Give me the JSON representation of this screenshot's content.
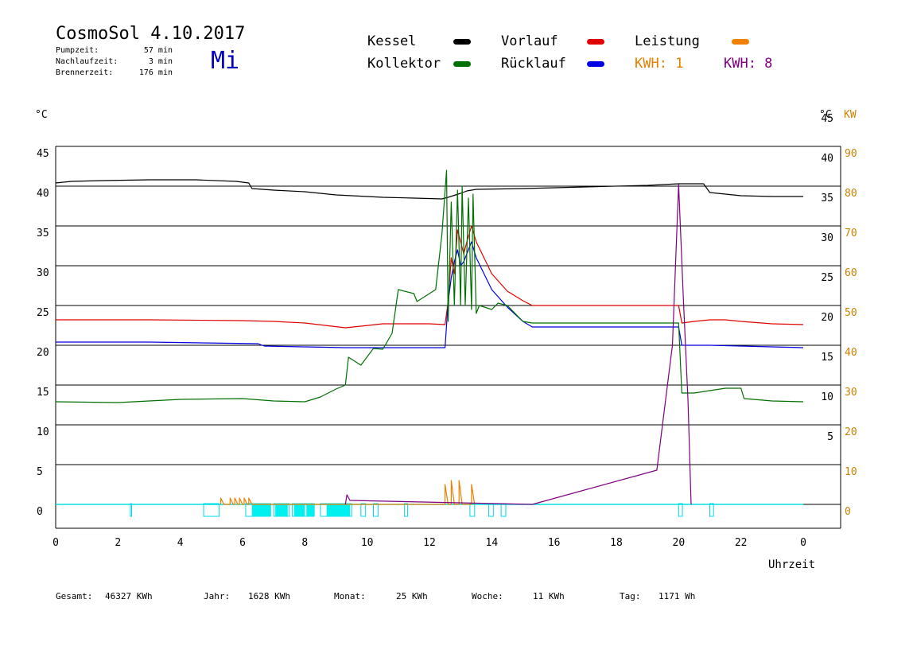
{
  "header": {
    "title": "CosmoSol 4.10.2017",
    "weekday": "Mi",
    "stats": [
      {
        "label": "Pumpzeit:",
        "value": "57 min"
      },
      {
        "label": "Nachlaufzeit:",
        "value": "3 min"
      },
      {
        "label": "Brennerzeit:",
        "value": "176 min"
      }
    ]
  },
  "legend": [
    {
      "name": "Kessel",
      "color": "#000000"
    },
    {
      "name": "Vorlauf",
      "color": "#e00000"
    },
    {
      "name": "Leistung",
      "color": "#f08000"
    },
    {
      "name": "Kollektor",
      "color": "#007000"
    },
    {
      "name": "Rücklauf",
      "color": "#0000e0"
    }
  ],
  "kwh_labels": [
    {
      "text": "KWH: 1",
      "color": "#e08000"
    },
    {
      "text": "KWH: 8",
      "color": "#800080"
    }
  ],
  "footer": [
    {
      "label": "Gesamt:",
      "value": "46327 KWh"
    },
    {
      "label": "Jahr:",
      "value": "1628 KWh"
    },
    {
      "label": "Monat:",
      "value": "25 KWh"
    },
    {
      "label": "Woche:",
      "value": "11 KWh"
    },
    {
      "label": "Tag:",
      "value": "1171 Wh"
    }
  ],
  "chart_data": {
    "type": "line",
    "xlabel": "Uhrzeit",
    "ylabel_left": "°C",
    "ylabel_right_c": "°C",
    "ylabel_right_kw": "KW",
    "xlim": [
      0,
      24
    ],
    "ylim": [
      -3,
      45
    ],
    "x_ticks": [
      "0",
      "2",
      "4",
      "6",
      "8",
      "10",
      "12",
      "14",
      "16",
      "18",
      "20",
      "22",
      "0"
    ],
    "y_ticks_left": [
      "0",
      "5",
      "10",
      "15",
      "20",
      "25",
      "30",
      "35",
      "40",
      "45"
    ],
    "y_ticks_right_c": [
      "5",
      "10",
      "15",
      "20",
      "25",
      "30",
      "35",
      "40",
      "45"
    ],
    "y_ticks_right_kw": [
      "0",
      "10",
      "20",
      "30",
      "40",
      "50",
      "60",
      "70",
      "80",
      "90"
    ],
    "grid": true,
    "series": [
      {
        "name": "Kessel",
        "color": "#000000",
        "points": [
          [
            0,
            40.4
          ],
          [
            0.5,
            40.6
          ],
          [
            1.5,
            40.7
          ],
          [
            3,
            40.8
          ],
          [
            4.5,
            40.8
          ],
          [
            5.8,
            40.6
          ],
          [
            6.2,
            40.4
          ],
          [
            6.3,
            39.7
          ],
          [
            7,
            39.5
          ],
          [
            8,
            39.3
          ],
          [
            9,
            38.9
          ],
          [
            9.5,
            38.8
          ],
          [
            10.5,
            38.6
          ],
          [
            11.5,
            38.5
          ],
          [
            12.4,
            38.4
          ],
          [
            12.6,
            38.6
          ],
          [
            13,
            39.1
          ],
          [
            13.2,
            39.4
          ],
          [
            13.5,
            39.6
          ],
          [
            15,
            39.7
          ],
          [
            17,
            39.9
          ],
          [
            19,
            40.1
          ],
          [
            20,
            40.3
          ],
          [
            20.8,
            40.3
          ],
          [
            21,
            39.2
          ],
          [
            21.5,
            39.0
          ],
          [
            22,
            38.8
          ],
          [
            23,
            38.7
          ],
          [
            24,
            38.7
          ]
        ]
      },
      {
        "name": "Vorlauf",
        "color": "#e00000",
        "points": [
          [
            0,
            23.2
          ],
          [
            3,
            23.2
          ],
          [
            6,
            23.1
          ],
          [
            7,
            23.0
          ],
          [
            8,
            22.8
          ],
          [
            9.3,
            22.2
          ],
          [
            9.8,
            22.4
          ],
          [
            10.5,
            22.7
          ],
          [
            12,
            22.7
          ],
          [
            12.5,
            22.6
          ],
          [
            12.6,
            25.5
          ],
          [
            12.7,
            31
          ],
          [
            12.8,
            29
          ],
          [
            12.9,
            34.5
          ],
          [
            13,
            33
          ],
          [
            13.1,
            31.5
          ],
          [
            13.2,
            33
          ],
          [
            13.35,
            35
          ],
          [
            13.5,
            33
          ],
          [
            14,
            29
          ],
          [
            14.5,
            26.8
          ],
          [
            15,
            25.6
          ],
          [
            15.3,
            25
          ],
          [
            20,
            25
          ],
          [
            20.1,
            22.8
          ],
          [
            20.5,
            23.0
          ],
          [
            21,
            23.2
          ],
          [
            21.5,
            23.2
          ],
          [
            22,
            23.0
          ],
          [
            23,
            22.7
          ],
          [
            24,
            22.6
          ]
        ]
      },
      {
        "name": "Rücklauf",
        "color": "#0000e0",
        "points": [
          [
            0,
            20.4
          ],
          [
            3,
            20.4
          ],
          [
            6.5,
            20.2
          ],
          [
            6.7,
            19.9
          ],
          [
            8,
            19.8
          ],
          [
            9.3,
            19.7
          ],
          [
            10,
            19.7
          ],
          [
            12,
            19.7
          ],
          [
            12.5,
            19.7
          ],
          [
            12.6,
            25.5
          ],
          [
            12.7,
            28.5
          ],
          [
            12.8,
            30.5
          ],
          [
            12.9,
            32
          ],
          [
            13,
            30
          ],
          [
            13.1,
            30.5
          ],
          [
            13.35,
            33
          ],
          [
            13.5,
            31
          ],
          [
            14,
            27
          ],
          [
            14.5,
            24.8
          ],
          [
            15,
            23
          ],
          [
            15.3,
            22.3
          ],
          [
            20,
            22.3
          ],
          [
            20.1,
            20.0
          ],
          [
            21,
            20.0
          ],
          [
            22,
            19.9
          ],
          [
            23,
            19.8
          ],
          [
            24,
            19.7
          ]
        ]
      },
      {
        "name": "Kollektor",
        "color": "#007000",
        "points": [
          [
            0,
            12.9
          ],
          [
            2,
            12.8
          ],
          [
            4,
            13.2
          ],
          [
            6,
            13.3
          ],
          [
            7,
            13.0
          ],
          [
            8,
            12.9
          ],
          [
            8.5,
            13.5
          ],
          [
            9,
            14.5
          ],
          [
            9.3,
            15.0
          ],
          [
            9.4,
            18.5
          ],
          [
            9.8,
            17.5
          ],
          [
            10.2,
            19.6
          ],
          [
            10.5,
            19.5
          ],
          [
            10.8,
            21.5
          ],
          [
            11,
            27
          ],
          [
            11.5,
            26.5
          ],
          [
            11.6,
            25.5
          ],
          [
            12,
            26.5
          ],
          [
            12.2,
            27
          ],
          [
            12.4,
            34
          ],
          [
            12.55,
            42
          ],
          [
            12.6,
            23
          ],
          [
            12.7,
            38
          ],
          [
            12.8,
            25
          ],
          [
            12.9,
            39.5
          ],
          [
            13,
            25
          ],
          [
            13.05,
            40
          ],
          [
            13.15,
            25
          ],
          [
            13.25,
            38.5
          ],
          [
            13.35,
            24.5
          ],
          [
            13.4,
            39
          ],
          [
            13.5,
            24
          ],
          [
            13.6,
            25
          ],
          [
            14,
            24.5
          ],
          [
            14.2,
            25.3
          ],
          [
            14.5,
            25
          ],
          [
            15,
            23
          ],
          [
            15.3,
            22.8
          ],
          [
            20,
            22.8
          ],
          [
            20.1,
            14
          ],
          [
            20.5,
            14.0
          ],
          [
            21,
            14.3
          ],
          [
            21.5,
            14.6
          ],
          [
            22,
            14.6
          ],
          [
            22.1,
            13.3
          ],
          [
            23,
            13.0
          ],
          [
            24,
            12.9
          ]
        ]
      },
      {
        "name": "Leistung",
        "color": "#f08000",
        "points": [
          [
            5.3,
            0
          ],
          [
            5.3,
            0.8
          ],
          [
            5.4,
            0
          ],
          [
            5.6,
            0
          ],
          [
            5.6,
            0.8
          ],
          [
            5.7,
            0
          ],
          [
            5.75,
            0
          ],
          [
            5.75,
            0.8
          ],
          [
            5.85,
            0
          ],
          [
            5.9,
            0
          ],
          [
            5.9,
            0.8
          ],
          [
            6.0,
            0
          ],
          [
            6.05,
            0
          ],
          [
            6.05,
            0.8
          ],
          [
            6.15,
            0
          ],
          [
            6.2,
            0
          ],
          [
            6.2,
            0.8
          ],
          [
            6.3,
            0
          ],
          [
            12.5,
            0
          ],
          [
            12.5,
            2.5
          ],
          [
            12.6,
            0
          ],
          [
            12.7,
            0
          ],
          [
            12.7,
            3
          ],
          [
            12.8,
            0
          ],
          [
            12.95,
            0
          ],
          [
            12.95,
            3
          ],
          [
            13.05,
            0
          ],
          [
            13.35,
            0
          ],
          [
            13.35,
            2.5
          ],
          [
            13.45,
            0
          ]
        ]
      },
      {
        "name": "Leistung KWH",
        "color": "#800080",
        "points": [
          [
            9.3,
            0
          ],
          [
            9.35,
            1.2
          ],
          [
            9.45,
            0.5
          ],
          [
            15.3,
            0
          ],
          [
            19.3,
            4.3
          ],
          [
            19.8,
            20
          ],
          [
            20.0,
            40.2
          ],
          [
            20.15,
            26
          ],
          [
            20.3,
            13
          ],
          [
            20.4,
            0
          ]
        ]
      }
    ],
    "pump_intervals": [
      [
        2.4,
        2.42
      ],
      [
        4.75,
        5.25
      ],
      [
        6.1,
        6.9
      ],
      [
        7.0,
        7.5
      ],
      [
        7.6,
        8.3
      ],
      [
        8.5,
        9.5
      ],
      [
        9.8,
        9.95
      ],
      [
        10.2,
        10.35
      ],
      [
        11.2,
        11.3
      ],
      [
        13.3,
        13.45
      ],
      [
        13.9,
        14.05
      ],
      [
        14.3,
        14.45
      ],
      [
        20.0,
        20.12
      ],
      [
        21.0,
        21.12
      ]
    ]
  }
}
